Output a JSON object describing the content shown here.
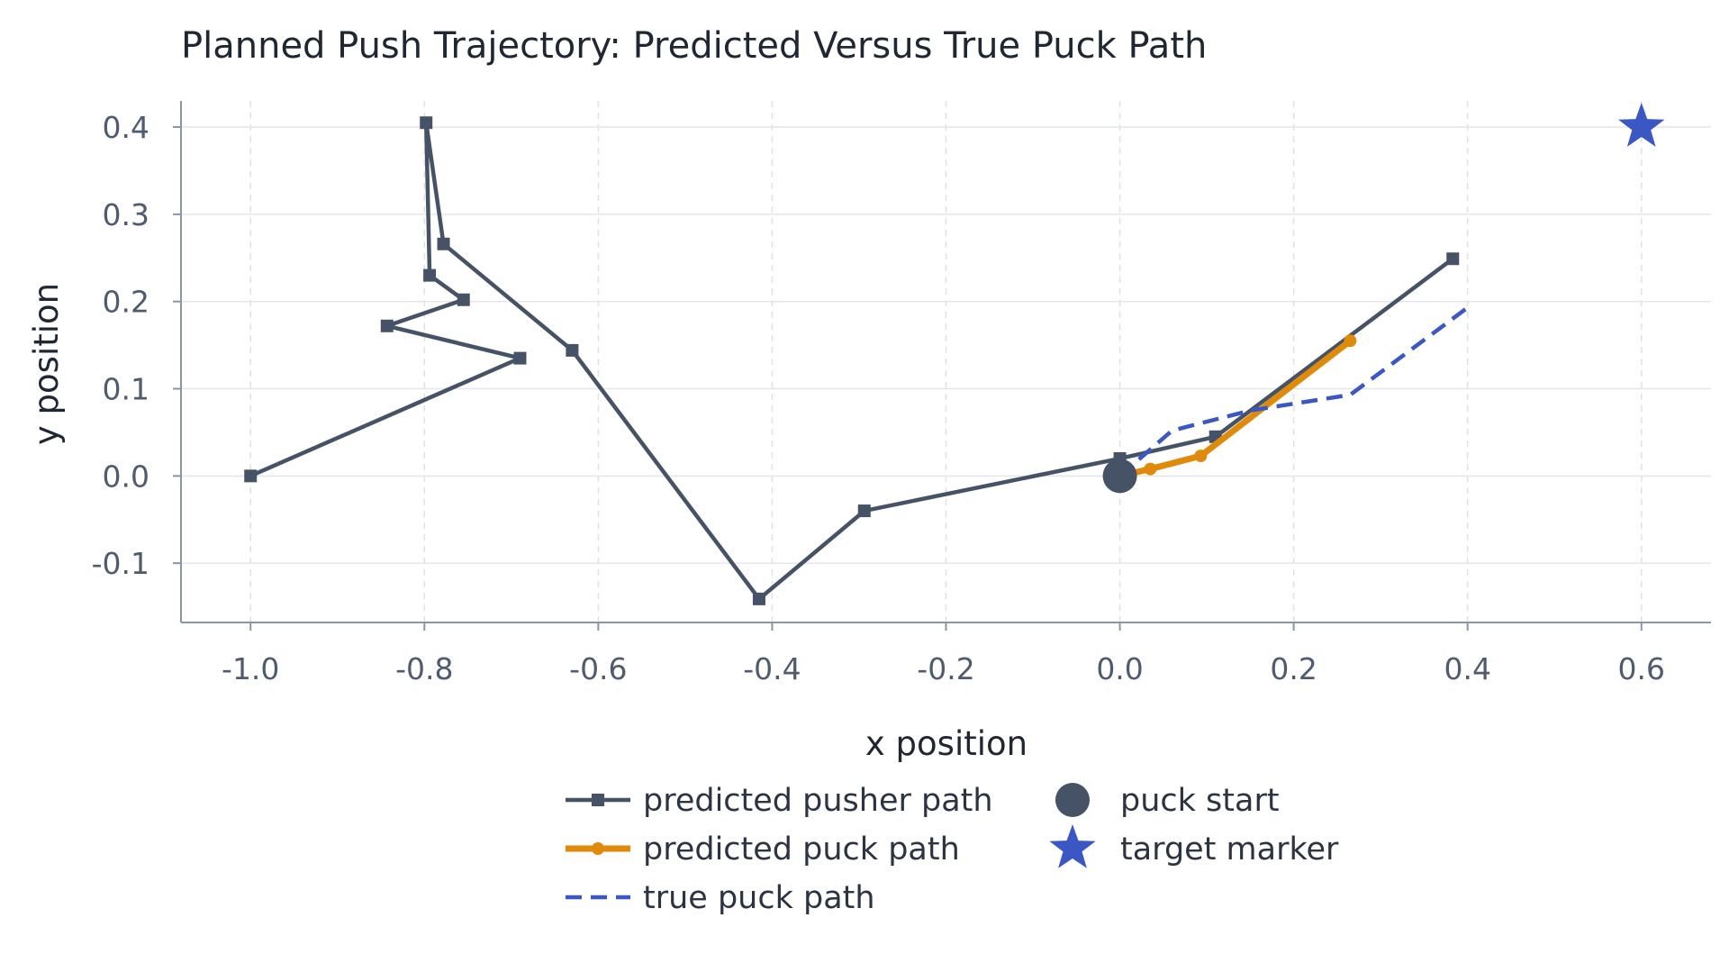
{
  "chart_data": {
    "type": "line",
    "title": "Planned Push Trajectory: Predicted Versus True Puck Path",
    "xlabel": "x position",
    "ylabel": "y position",
    "xlim": [
      -1.08,
      0.68
    ],
    "ylim": [
      -0.168,
      0.43
    ],
    "xticks": [
      -1.0,
      -0.8,
      -0.6,
      -0.4,
      -0.2,
      0.0,
      0.2,
      0.4,
      0.6
    ],
    "yticks": [
      -0.1,
      0.0,
      0.1,
      0.2,
      0.3,
      0.4
    ],
    "xtick_labels": [
      "-1.0",
      "-0.8",
      "-0.6",
      "-0.4",
      "-0.2",
      "0.0",
      "0.2",
      "0.4",
      "0.6"
    ],
    "ytick_labels": [
      "-0.1",
      "0.0",
      "0.1",
      "0.2",
      "0.3",
      "0.4"
    ],
    "grid": true,
    "legend_position": "bottom-center",
    "series": [
      {
        "name": "predicted pusher path",
        "color": "#465366",
        "style": "solid",
        "marker": "square",
        "x": [
          -1.0,
          -0.69,
          -0.843,
          -0.755,
          -0.794,
          -0.798,
          -0.778,
          -0.63,
          -0.415,
          -0.294,
          0.0,
          0.11,
          0.383
        ],
        "y": [
          0.0,
          0.135,
          0.172,
          0.202,
          0.23,
          0.405,
          0.266,
          0.144,
          -0.141,
          -0.04,
          0.02,
          0.045,
          0.249
        ]
      },
      {
        "name": "predicted puck path",
        "color": "#e08a0b",
        "style": "solid",
        "marker": "circle",
        "x": [
          0.0,
          0.035,
          0.093,
          0.265
        ],
        "y": [
          0.0,
          0.008,
          0.023,
          0.155
        ]
      },
      {
        "name": "true puck path",
        "color": "#3b57c4",
        "style": "dashed",
        "marker": "none",
        "x": [
          0.0,
          0.06,
          0.15,
          0.265,
          0.4
        ],
        "y": [
          0.0,
          0.052,
          0.075,
          0.093,
          0.193
        ]
      }
    ],
    "points": [
      {
        "name": "puck start",
        "x": 0.0,
        "y": 0.0,
        "marker": "circle",
        "color": "#465366"
      },
      {
        "name": "target marker",
        "x": 0.6,
        "y": 0.4,
        "marker": "star",
        "color": "#3b57c4"
      }
    ]
  }
}
